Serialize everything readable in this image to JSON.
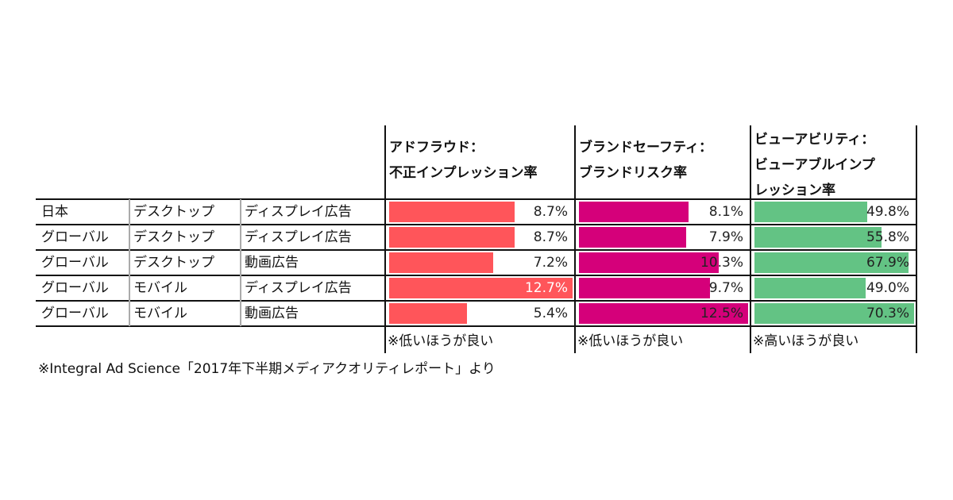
{
  "headers": [
    "アドフラウド：\n不正インプレッション率",
    "ブランドセーフティ：\nブランドリスク率",
    "ビューアビリティ：\nビューアブルインプ\nレッション率"
  ],
  "colors": [
    "#FF555A",
    "#D5007A",
    "#63C384"
  ],
  "rows": [
    {
      "region": "日本",
      "device": "デスクトップ",
      "format": "ディスプレイ広告",
      "values": [
        "8.7%",
        "8.1%",
        "49.8%"
      ]
    },
    {
      "region": "グローバル",
      "device": "デスクトップ",
      "format": "ディスプレイ広告",
      "values": [
        "8.7%",
        "7.9%",
        "55.8%"
      ]
    },
    {
      "region": "グローバル",
      "device": "デスクトップ",
      "format": "動画広告",
      "values": [
        "7.2%",
        "10.3%",
        "67.9%"
      ]
    },
    {
      "region": "グローバル",
      "device": "モバイル",
      "format": "ディスプレイ広告",
      "values": [
        "12.7%",
        "9.7%",
        "49.0%"
      ]
    },
    {
      "region": "グローバル",
      "device": "モバイル",
      "format": "動画広告",
      "values": [
        "5.4%",
        "12.5%",
        "70.3%"
      ]
    }
  ],
  "notes": [
    "※低いほうが良い",
    "※低いほうが良い",
    "※高いほうが良い"
  ],
  "source": "※Integral Ad Science「2017年下半期メディアクオリティレポート」より"
}
